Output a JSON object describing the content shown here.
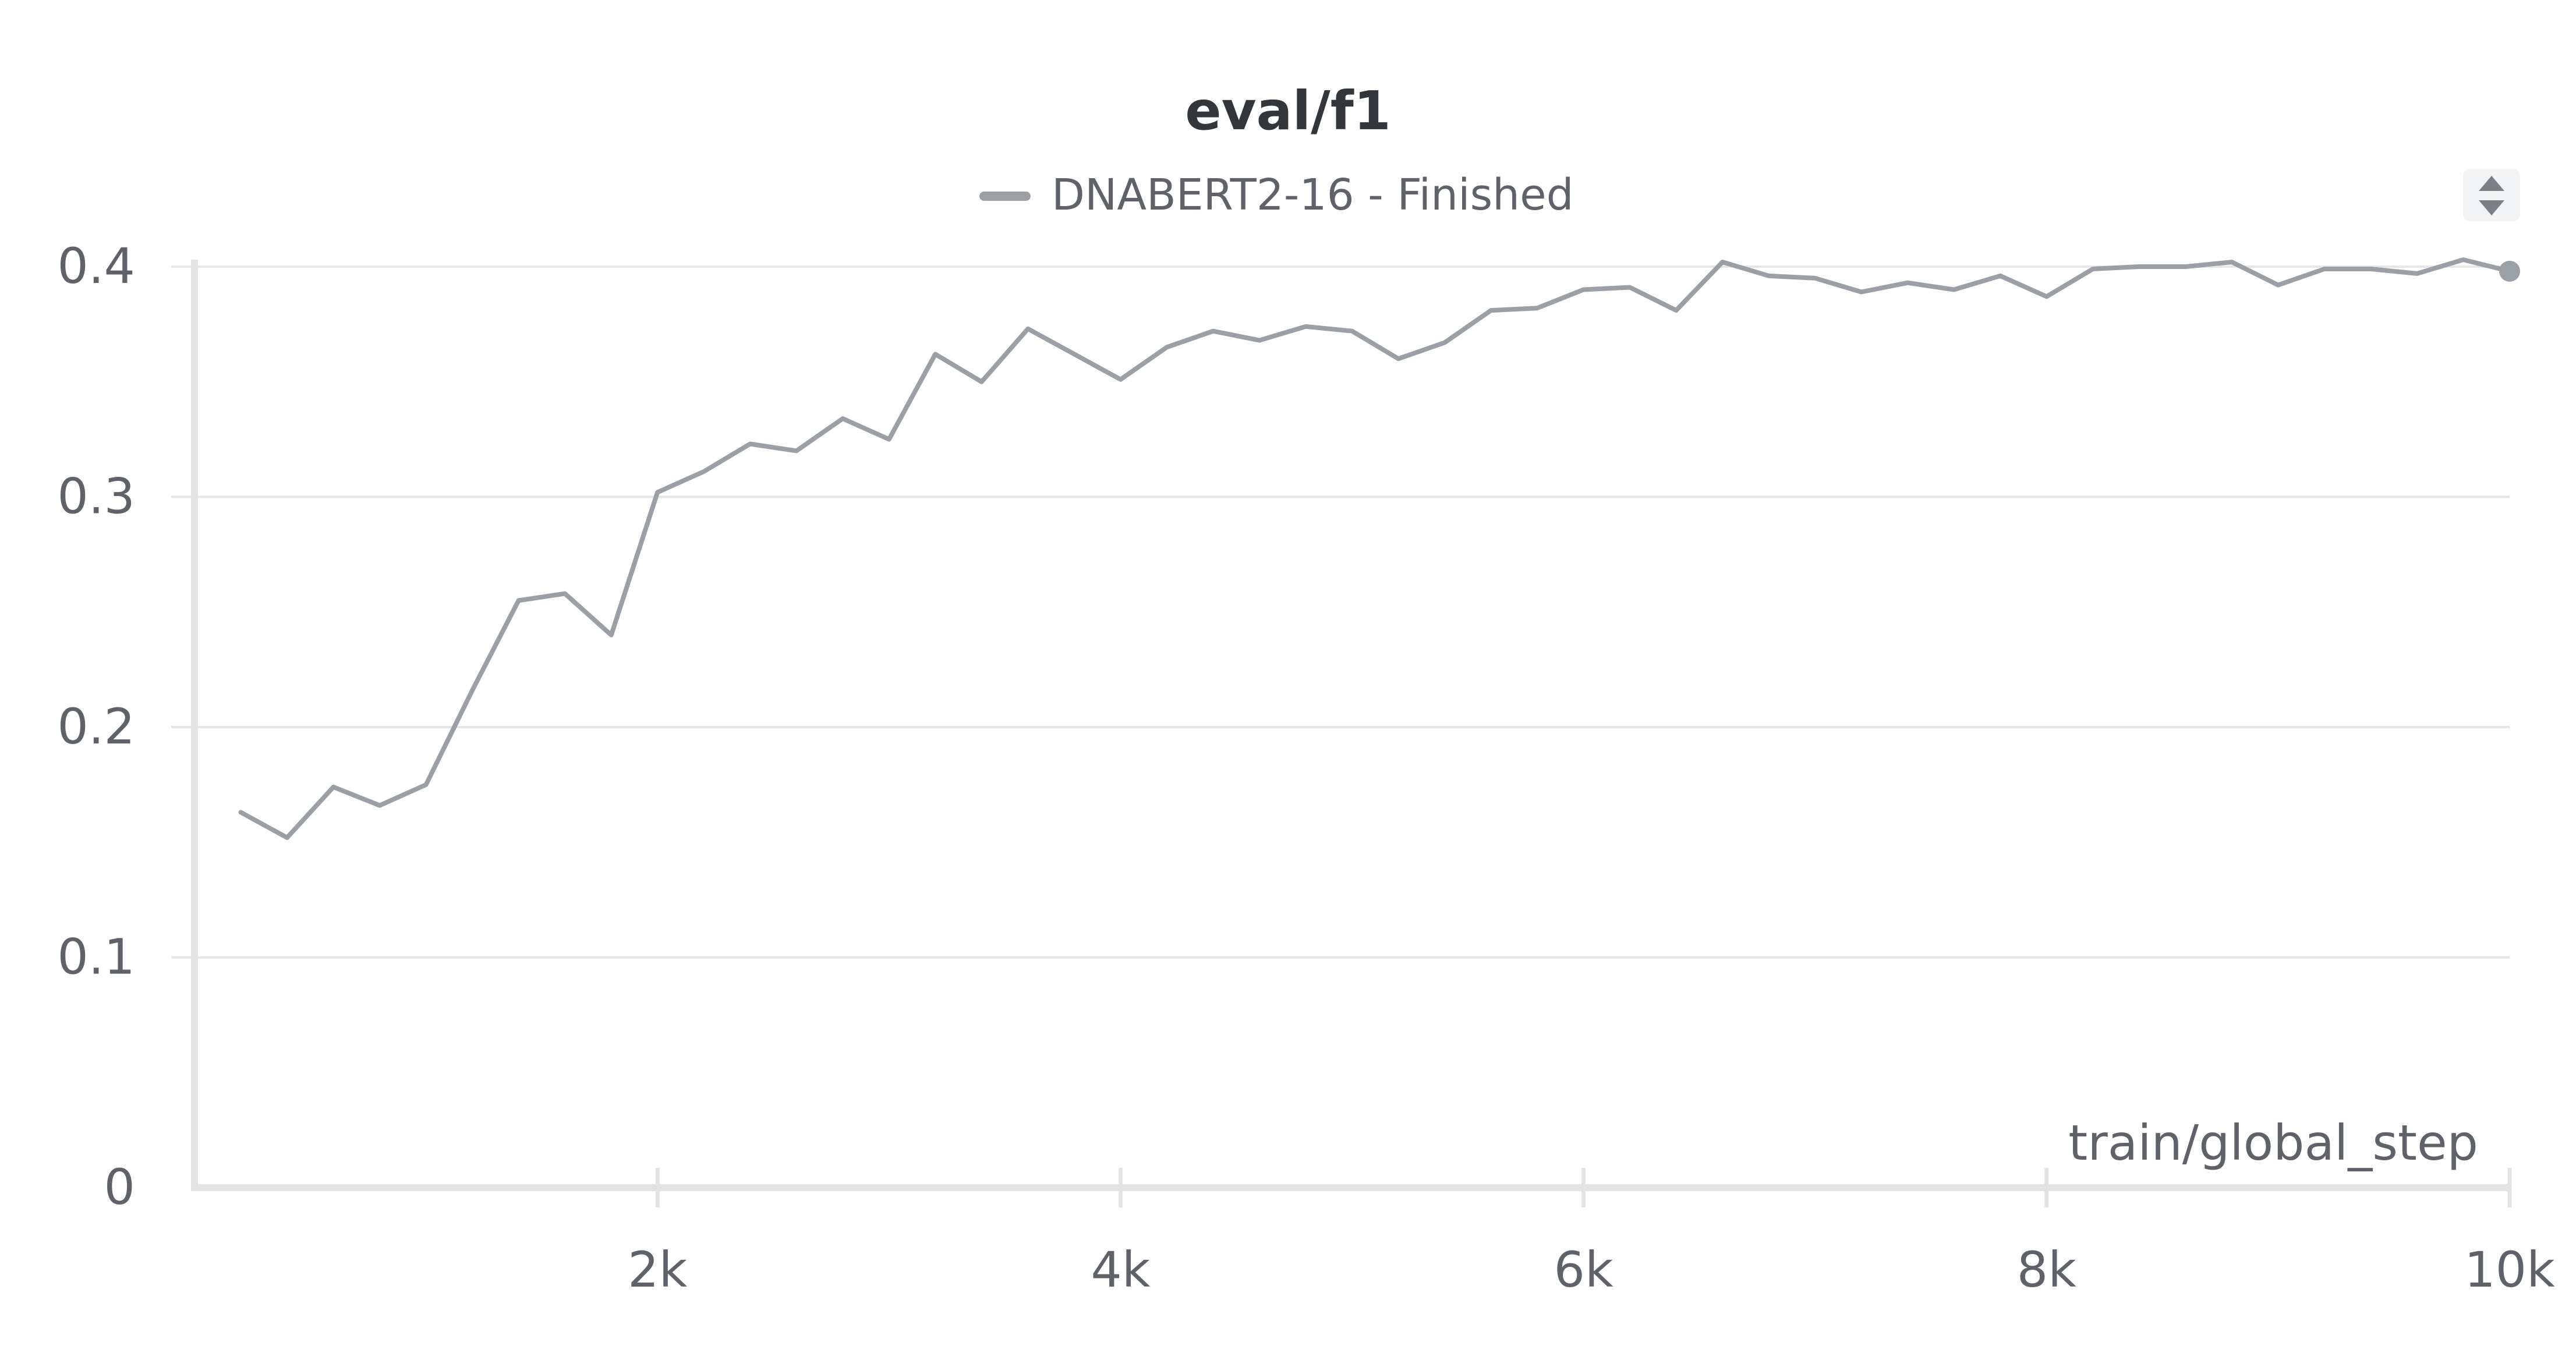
{
  "panel": {
    "title": "eval/f1",
    "legend_label": "DNABERT2-16 - Finished",
    "colors": {
      "series": "#9aa0a6",
      "grid": "#e6e6e6",
      "axis": "#e3e3e3",
      "text": "#5f6369",
      "title": "#33363b"
    }
  },
  "chart_data": {
    "type": "line",
    "title": "eval/f1",
    "xlabel": "train/global_step",
    "ylabel": "",
    "xlim": [
      0,
      10000
    ],
    "ylim": [
      0,
      0.4
    ],
    "x_ticks": [
      2000,
      4000,
      6000,
      8000,
      10000
    ],
    "x_tick_labels": [
      "2k",
      "4k",
      "6k",
      "8k",
      "10k"
    ],
    "y_ticks": [
      0,
      0.1,
      0.2,
      0.3,
      0.4
    ],
    "y_tick_labels": [
      "0",
      "0.1",
      "0.2",
      "0.3",
      "0.4"
    ],
    "grid": true,
    "legend_position": "top-center",
    "series": [
      {
        "name": "DNABERT2-16 - Finished",
        "color": "#9aa0a6",
        "x": [
          200,
          400,
          600,
          800,
          1000,
          1200,
          1400,
          1600,
          1800,
          2000,
          2200,
          2400,
          2600,
          2800,
          3000,
          3200,
          3400,
          3600,
          3800,
          4000,
          4200,
          4400,
          4600,
          4800,
          5000,
          5200,
          5400,
          5600,
          5800,
          6000,
          6200,
          6400,
          6600,
          6800,
          7000,
          7200,
          7400,
          7600,
          7800,
          8000,
          8200,
          8400,
          8600,
          8800,
          9000,
          9200,
          9400,
          9600,
          9800,
          10000
        ],
        "y": [
          0.163,
          0.152,
          0.174,
          0.166,
          0.175,
          0.216,
          0.255,
          0.258,
          0.24,
          0.302,
          0.311,
          0.323,
          0.32,
          0.334,
          0.325,
          0.362,
          0.35,
          0.373,
          0.362,
          0.351,
          0.365,
          0.372,
          0.368,
          0.374,
          0.372,
          0.36,
          0.367,
          0.381,
          0.382,
          0.39,
          0.391,
          0.381,
          0.402,
          0.396,
          0.395,
          0.389,
          0.393,
          0.39,
          0.396,
          0.387,
          0.399,
          0.4,
          0.4,
          0.402,
          0.392,
          0.399,
          0.399,
          0.397,
          0.403,
          0.398
        ]
      }
    ]
  }
}
